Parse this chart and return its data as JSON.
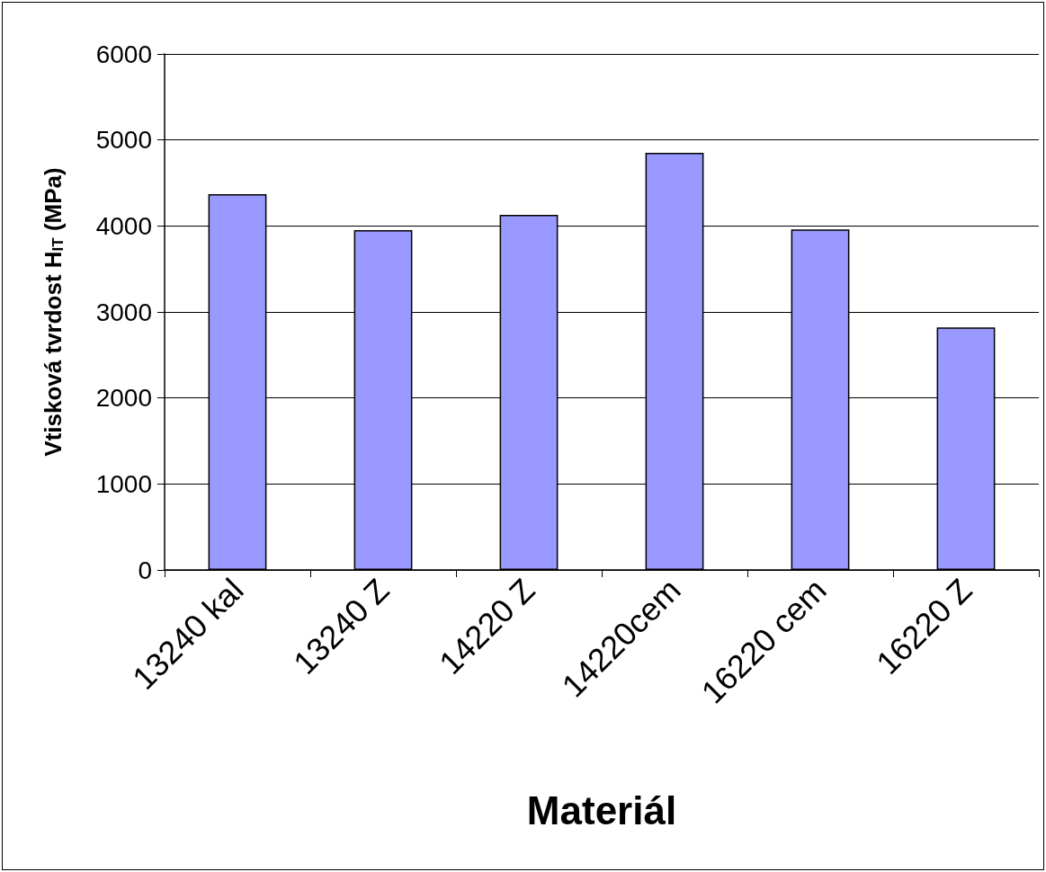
{
  "chart_data": {
    "type": "bar",
    "xlabel": "Materiál",
    "ylabel": "Vtisková tvrdost H$_{IT}$ (MPa)",
    "categories": [
      "13240 kal",
      "13240 Z",
      "14220 Z",
      "14220cem",
      "16220 cem",
      "16220 Z"
    ],
    "values": [
      4370,
      3950,
      4130,
      4850,
      3960,
      2820
    ],
    "color": "#9999ff",
    "ylim": [
      0,
      6000
    ],
    "yticks": [
      0,
      1000,
      2000,
      3000,
      4000,
      5000,
      6000
    ],
    "grid": "y"
  }
}
